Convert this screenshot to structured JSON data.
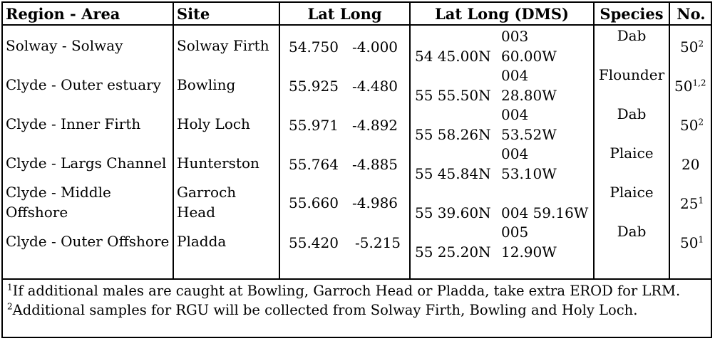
{
  "table": {
    "headers": [
      "Region - Area",
      "Site",
      "Lat Long",
      "Lat Long (DMS)",
      "Species",
      "No."
    ],
    "rows": [
      {
        "region_line1": "Solway - Solway",
        "region_line2": "",
        "site_line1": "Solway Firth",
        "site_line2": "",
        "lat": "54.750",
        "long": "-4.000",
        "dms_lat": "54 45.00N",
        "dms_long_deg": "003",
        "dms_long_min": "60.00W",
        "species": "Dab",
        "no": "50",
        "no_sup": "2"
      },
      {
        "region_line1": "Clyde - Outer estuary",
        "region_line2": "",
        "site_line1": "Bowling",
        "site_line2": "",
        "lat": "55.925",
        "long": "-4.480",
        "dms_lat": "55 55.50N",
        "dms_long_deg": "004",
        "dms_long_min": "28.80W",
        "species": "Flounder",
        "no": "50",
        "no_sup": "1,2"
      },
      {
        "region_line1": "Clyde - Inner Firth",
        "region_line2": "",
        "site_line1": "Holy Loch",
        "site_line2": "",
        "lat": "55.971",
        "long": "-4.892",
        "dms_lat": "55 58.26N",
        "dms_long_deg": "004",
        "dms_long_min": "53.52W",
        "species": "Dab",
        "no": "50",
        "no_sup": "2"
      },
      {
        "region_line1": "Clyde - Largs Channel",
        "region_line2": "",
        "site_line1": "Hunterston",
        "site_line2": "",
        "lat": "55.764",
        "long": "-4.885",
        "dms_lat": "55 45.84N",
        "dms_long_deg": "004",
        "dms_long_min": "53.10W",
        "species": "Plaice",
        "no": "20",
        "no_sup": ""
      },
      {
        "region_line1": "Clyde - Middle",
        "region_line2": "Offshore",
        "site_line1": "Garroch",
        "site_line2": "Head",
        "lat": "55.660",
        "long": "-4.986",
        "dms_lat": "55 39.60N",
        "dms_long_deg": "004 59.16W",
        "dms_long_min": "",
        "species": "Plaice",
        "no": "25",
        "no_sup": "1"
      },
      {
        "region_line1": "Clyde - Outer Offshore",
        "region_line2": "",
        "site_line1": "Pladda",
        "site_line2": "",
        "lat": "55.420",
        "long": "-5.215",
        "dms_lat": "55 25.20N",
        "dms_long_deg": "005",
        "dms_long_min": "12.90W",
        "species": "Dab",
        "no": "50",
        "no_sup": "1"
      }
    ]
  },
  "footnotes": [
    {
      "marker": "1",
      "text": "If additional males are caught at Bowling, Garroch Head or Pladda, take extra EROD for LRM."
    },
    {
      "marker": "2",
      "text": "Additional samples for RGU will be collected from Solway Firth, Bowling and Holy Loch."
    }
  ]
}
